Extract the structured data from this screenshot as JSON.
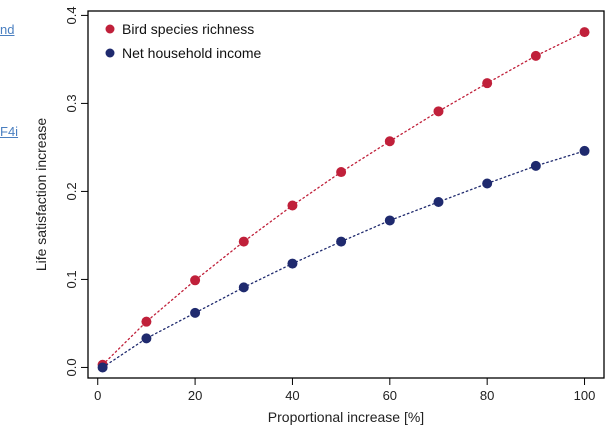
{
  "side_fragments": [
    "nd",
    "F4i"
  ],
  "chart_data": {
    "type": "scatter",
    "xlabel": "Proportional increase [%]",
    "ylabel": "Life satisfaction increase",
    "xlim": [
      -2,
      104
    ],
    "ylim": [
      -0.012,
      0.405
    ],
    "xticks": [
      0,
      20,
      40,
      60,
      80,
      100
    ],
    "yticks": [
      0.0,
      0.1,
      0.2,
      0.3,
      0.4
    ],
    "ytick_labels": [
      "0.0",
      "0.1",
      "0.2",
      "0.3",
      "0.4"
    ],
    "legend_position": "top-left",
    "grid": false,
    "x": [
      1,
      10,
      20,
      30,
      40,
      50,
      60,
      70,
      80,
      90,
      100
    ],
    "series": [
      {
        "name": "Bird species richness",
        "color": "#c0203a",
        "values": [
          0.003,
          0.052,
          0.099,
          0.143,
          0.184,
          0.222,
          0.257,
          0.291,
          0.323,
          0.354,
          0.381
        ]
      },
      {
        "name": "Net household income",
        "color": "#1f2a6e",
        "values": [
          0.0,
          0.033,
          0.062,
          0.091,
          0.118,
          0.143,
          0.167,
          0.188,
          0.209,
          0.229,
          0.246
        ]
      }
    ]
  }
}
